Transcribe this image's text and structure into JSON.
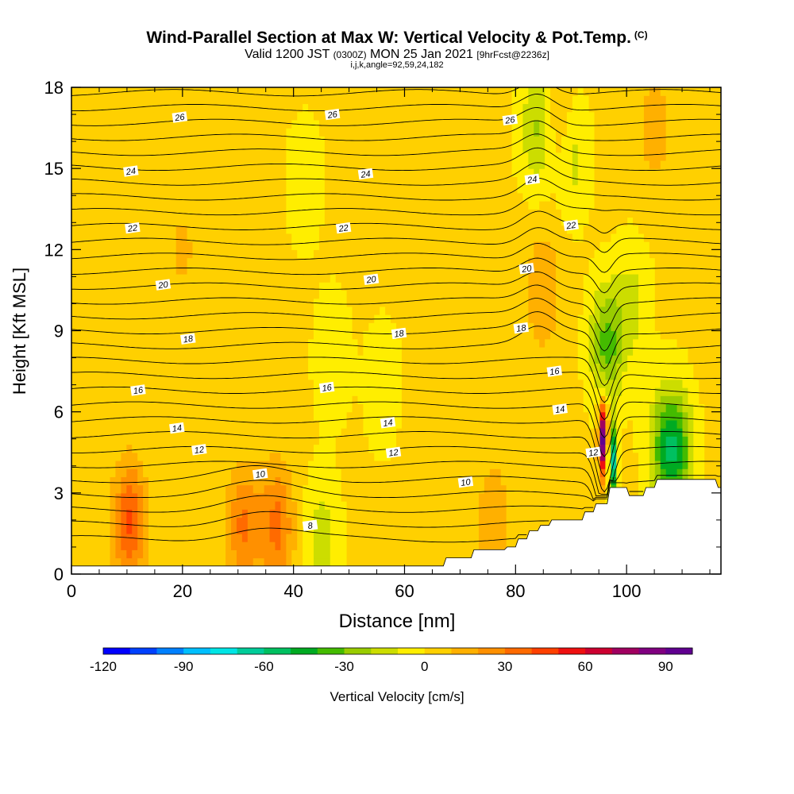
{
  "header": {
    "title": "Wind-Parallel Section at Max W: Vertical Velocity & Pot.Temp.",
    "copyright": "(C)",
    "valid_prefix": "Valid 1200 JST",
    "valid_utc": "(0300Z)",
    "valid_date": "MON 25 Jan 2021",
    "forecast": "[9hrFcst@2236z]",
    "indices": "i,j,k,angle=92,59,24,182"
  },
  "colorbar": {
    "label": "Vertical Velocity [cm/s]",
    "ticks": [
      "-120",
      "-90",
      "-60",
      "-30",
      "0",
      "30",
      "60",
      "90"
    ],
    "colors": [
      "#0000ff",
      "#0040ff",
      "#0080ff",
      "#00bfff",
      "#00e5e5",
      "#00cc99",
      "#00c060",
      "#00aa22",
      "#44bb00",
      "#99cc00",
      "#ccdd00",
      "#ffee00",
      "#ffd000",
      "#ffb000",
      "#ff9000",
      "#ff6a00",
      "#ff4000",
      "#ee1010",
      "#cc0030",
      "#a00060",
      "#800080",
      "#600090"
    ]
  },
  "chart_data": {
    "type": "heatmap",
    "title": "Wind-Parallel Section at Max W: Vertical Velocity & Pot.Temp.",
    "xlabel": "Distance [nm]",
    "ylabel": "Height [Kft MSL]",
    "xlim": [
      0,
      117
    ],
    "ylim": [
      0,
      18
    ],
    "x_ticks": [
      "0",
      "20",
      "40",
      "60",
      "80",
      "100"
    ],
    "y_ticks": [
      "0",
      "3",
      "6",
      "9",
      "12",
      "15",
      "18"
    ],
    "field": "Vertical Velocity [cm/s]",
    "field_range": [
      -120,
      100
    ],
    "terrain_kft": [
      [
        0,
        0.3
      ],
      [
        67,
        0.3
      ],
      [
        67.5,
        0.6
      ],
      [
        72,
        0.6
      ],
      [
        72.5,
        0.9
      ],
      [
        78,
        0.9
      ],
      [
        78.5,
        1.0
      ],
      [
        80,
        1.0
      ],
      [
        80.5,
        1.3
      ],
      [
        82,
        1.3
      ],
      [
        82.5,
        1.6
      ],
      [
        84,
        1.6
      ],
      [
        84.5,
        1.8
      ],
      [
        86,
        1.8
      ],
      [
        86.5,
        2.0
      ],
      [
        92,
        2.0
      ],
      [
        92.5,
        2.3
      ],
      [
        94,
        2.3
      ],
      [
        94.5,
        2.6
      ],
      [
        96,
        2.6
      ],
      [
        96.5,
        2.6
      ],
      [
        97,
        3.2
      ],
      [
        100,
        3.2
      ],
      [
        100.5,
        2.9
      ],
      [
        103,
        2.9
      ],
      [
        103.5,
        3.2
      ],
      [
        105,
        3.2
      ],
      [
        105.5,
        3.5
      ],
      [
        111,
        3.5
      ],
      [
        111.5,
        3.5
      ],
      [
        116,
        3.5
      ],
      [
        116.5,
        3.2
      ],
      [
        117,
        3.2
      ]
    ],
    "updrafts": [
      {
        "x": 10.5,
        "y": 1.9,
        "w": 40
      },
      {
        "x": 31,
        "y": 1.8,
        "w": 30
      },
      {
        "x": 37,
        "y": 1.8,
        "w": 32
      },
      {
        "x": 76,
        "y": 1.9,
        "w": 18
      },
      {
        "x": 95.8,
        "y": 5.0,
        "w": 95
      },
      {
        "x": 85,
        "y": 10.5,
        "w": 18
      },
      {
        "x": 88,
        "y": 16.5,
        "w": 16
      },
      {
        "x": 105,
        "y": 16.5,
        "w": 14
      },
      {
        "x": 20,
        "y": 12,
        "w": 10
      },
      {
        "x": 12,
        "y": 15,
        "w": 8
      }
    ],
    "downdrafts": [
      {
        "x": 97.5,
        "y": 4.2,
        "w": -70
      },
      {
        "x": 96.5,
        "y": 8.5,
        "w": -35
      },
      {
        "x": 109,
        "y": 4.5,
        "w": -40
      },
      {
        "x": 106.5,
        "y": 4.8,
        "w": -25
      },
      {
        "x": 84,
        "y": 16.5,
        "w": -25
      },
      {
        "x": 90,
        "y": 15.5,
        "w": -20
      },
      {
        "x": 45,
        "y": 1.3,
        "w": -18
      },
      {
        "x": 47,
        "y": 8.0,
        "w": -12
      },
      {
        "x": 42,
        "y": 14.5,
        "w": -10
      },
      {
        "x": 56,
        "y": 7.0,
        "w": -10
      },
      {
        "x": 101,
        "y": 10,
        "w": -15
      }
    ],
    "theta_contours": [
      {
        "label": "8",
        "label_x": 43,
        "base_y": 1.8
      },
      {
        "label": "10",
        "label_x": 34,
        "base_y": 3.7
      },
      {
        "label": "10",
        "label_x": 71,
        "base_y": 3.4
      },
      {
        "label": "12",
        "label_x": 23,
        "base_y": 4.6
      },
      {
        "label": "12",
        "label_x": 58,
        "base_y": 4.5
      },
      {
        "label": "12",
        "label_x": 94,
        "base_y": 4.5
      },
      {
        "label": "14",
        "label_x": 19,
        "base_y": 5.4
      },
      {
        "label": "14",
        "label_x": 57,
        "base_y": 5.6
      },
      {
        "label": "14",
        "label_x": 88,
        "base_y": 6.1
      },
      {
        "label": "16",
        "label_x": 12,
        "base_y": 6.8
      },
      {
        "label": "16",
        "label_x": 46,
        "base_y": 6.9
      },
      {
        "label": "16",
        "label_x": 87,
        "base_y": 7.5
      },
      {
        "label": "18",
        "label_x": 21,
        "base_y": 8.7
      },
      {
        "label": "18",
        "label_x": 59,
        "base_y": 8.9
      },
      {
        "label": "18",
        "label_x": 81,
        "base_y": 9.1
      },
      {
        "label": "20",
        "label_x": 16.5,
        "base_y": 10.7
      },
      {
        "label": "20",
        "label_x": 54,
        "base_y": 10.9
      },
      {
        "label": "20",
        "label_x": 82,
        "base_y": 11.3
      },
      {
        "label": "22",
        "label_x": 11,
        "base_y": 12.8
      },
      {
        "label": "22",
        "label_x": 49,
        "base_y": 12.8
      },
      {
        "label": "22",
        "label_x": 90,
        "base_y": 12.9
      },
      {
        "label": "24",
        "label_x": 10.7,
        "base_y": 14.9
      },
      {
        "label": "24",
        "label_x": 53,
        "base_y": 14.8
      },
      {
        "label": "24",
        "label_x": 83,
        "base_y": 14.6
      },
      {
        "label": "26",
        "label_x": 19.5,
        "base_y": 16.9
      },
      {
        "label": "26",
        "label_x": 47,
        "base_y": 17.0
      },
      {
        "label": "26",
        "label_x": 79,
        "base_y": 16.8
      }
    ]
  }
}
